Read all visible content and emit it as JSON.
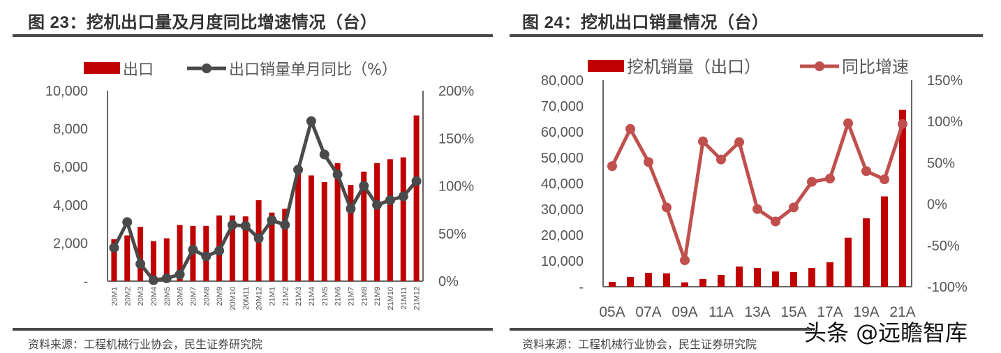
{
  "figures": [
    {
      "title": "图 23：挖机出口量及月度同比增速情况（台）",
      "source": "资料来源：工程机械行业协会，民生证券研究院"
    },
    {
      "title": "图 24：挖机出口销量情况（台）",
      "source": "资料来源：工程机械行业协会，民生证券研究院"
    }
  ],
  "watermark": "头条 @远瞻智库",
  "chart_data": [
    {
      "type": "bar",
      "title": "图 23：挖机出口量及月度同比增速情况（台）",
      "categories": [
        "20M1",
        "20M2",
        "20M3",
        "20M4",
        "20M5",
        "20M6",
        "20M7",
        "20M8",
        "20M9",
        "20M10",
        "20M11",
        "20M12",
        "21M1",
        "21M2",
        "21M3",
        "21M4",
        "21M5",
        "21M6",
        "21M7",
        "21M8",
        "21M9",
        "21M10",
        "21M11",
        "21M12"
      ],
      "series": [
        {
          "name": "出口",
          "type": "bar",
          "axis": "left",
          "color": "#c00000",
          "values": [
            2200,
            2400,
            2850,
            2100,
            2250,
            2950,
            2900,
            2900,
            3450,
            3450,
            3400,
            4250,
            3600,
            3800,
            5750,
            5550,
            5200,
            6200,
            5050,
            5750,
            6200,
            6400,
            6500,
            8700
          ]
        },
        {
          "name": "出口销量单月同比（%）",
          "type": "line",
          "axis": "right",
          "color": "#4a4a4a",
          "values": [
            35,
            62,
            18,
            1,
            3,
            7,
            33,
            26,
            32,
            59,
            58,
            45,
            64,
            59,
            117,
            168,
            133,
            112,
            76,
            100,
            80,
            85,
            89,
            105
          ]
        }
      ],
      "ylim": [
        0,
        10000
      ],
      "y_ticks": [
        "-",
        "2,000",
        "4,000",
        "6,000",
        "8,000",
        "10,000"
      ],
      "y2lim": [
        0,
        200
      ],
      "y2_ticks": [
        "0%",
        "50%",
        "100%",
        "150%",
        "200%"
      ],
      "legend_position": "top",
      "grid": false
    },
    {
      "type": "bar",
      "title": "图 24：挖机出口销量情况（台）",
      "categories": [
        "05A",
        "06A",
        "07A",
        "08A",
        "09A",
        "10A",
        "11A",
        "12A",
        "13A",
        "14A",
        "15A",
        "16A",
        "17A",
        "18A",
        "19A",
        "20A",
        "21A"
      ],
      "x_tick_labels": [
        "05A",
        "07A",
        "09A",
        "11A",
        "13A",
        "15A",
        "17A",
        "19A",
        "21A"
      ],
      "series": [
        {
          "name": "挖机销量（出口）",
          "type": "bar",
          "axis": "left",
          "color": "#c00000",
          "values": [
            1900,
            3800,
            5400,
            5200,
            1700,
            3000,
            4600,
            7800,
            7300,
            5900,
            5700,
            7300,
            9500,
            19000,
            26500,
            35000,
            68500
          ]
        },
        {
          "name": "同比增速",
          "type": "line",
          "axis": "right",
          "color": "#c0504d",
          "values": [
            46,
            91,
            51,
            -4,
            -68,
            76,
            54,
            75,
            -6,
            -21,
            -4,
            27,
            31,
            98,
            40,
            30,
            97
          ]
        }
      ],
      "ylim": [
        0,
        80000
      ],
      "y_ticks": [
        "-",
        "10,000",
        "20,000",
        "30,000",
        "40,000",
        "50,000",
        "60,000",
        "70,000",
        "80,000"
      ],
      "y2lim": [
        -100,
        150
      ],
      "y2_ticks": [
        "-100%",
        "-50%",
        "0%",
        "50%",
        "100%",
        "150%"
      ],
      "legend_position": "top",
      "grid": false
    }
  ]
}
